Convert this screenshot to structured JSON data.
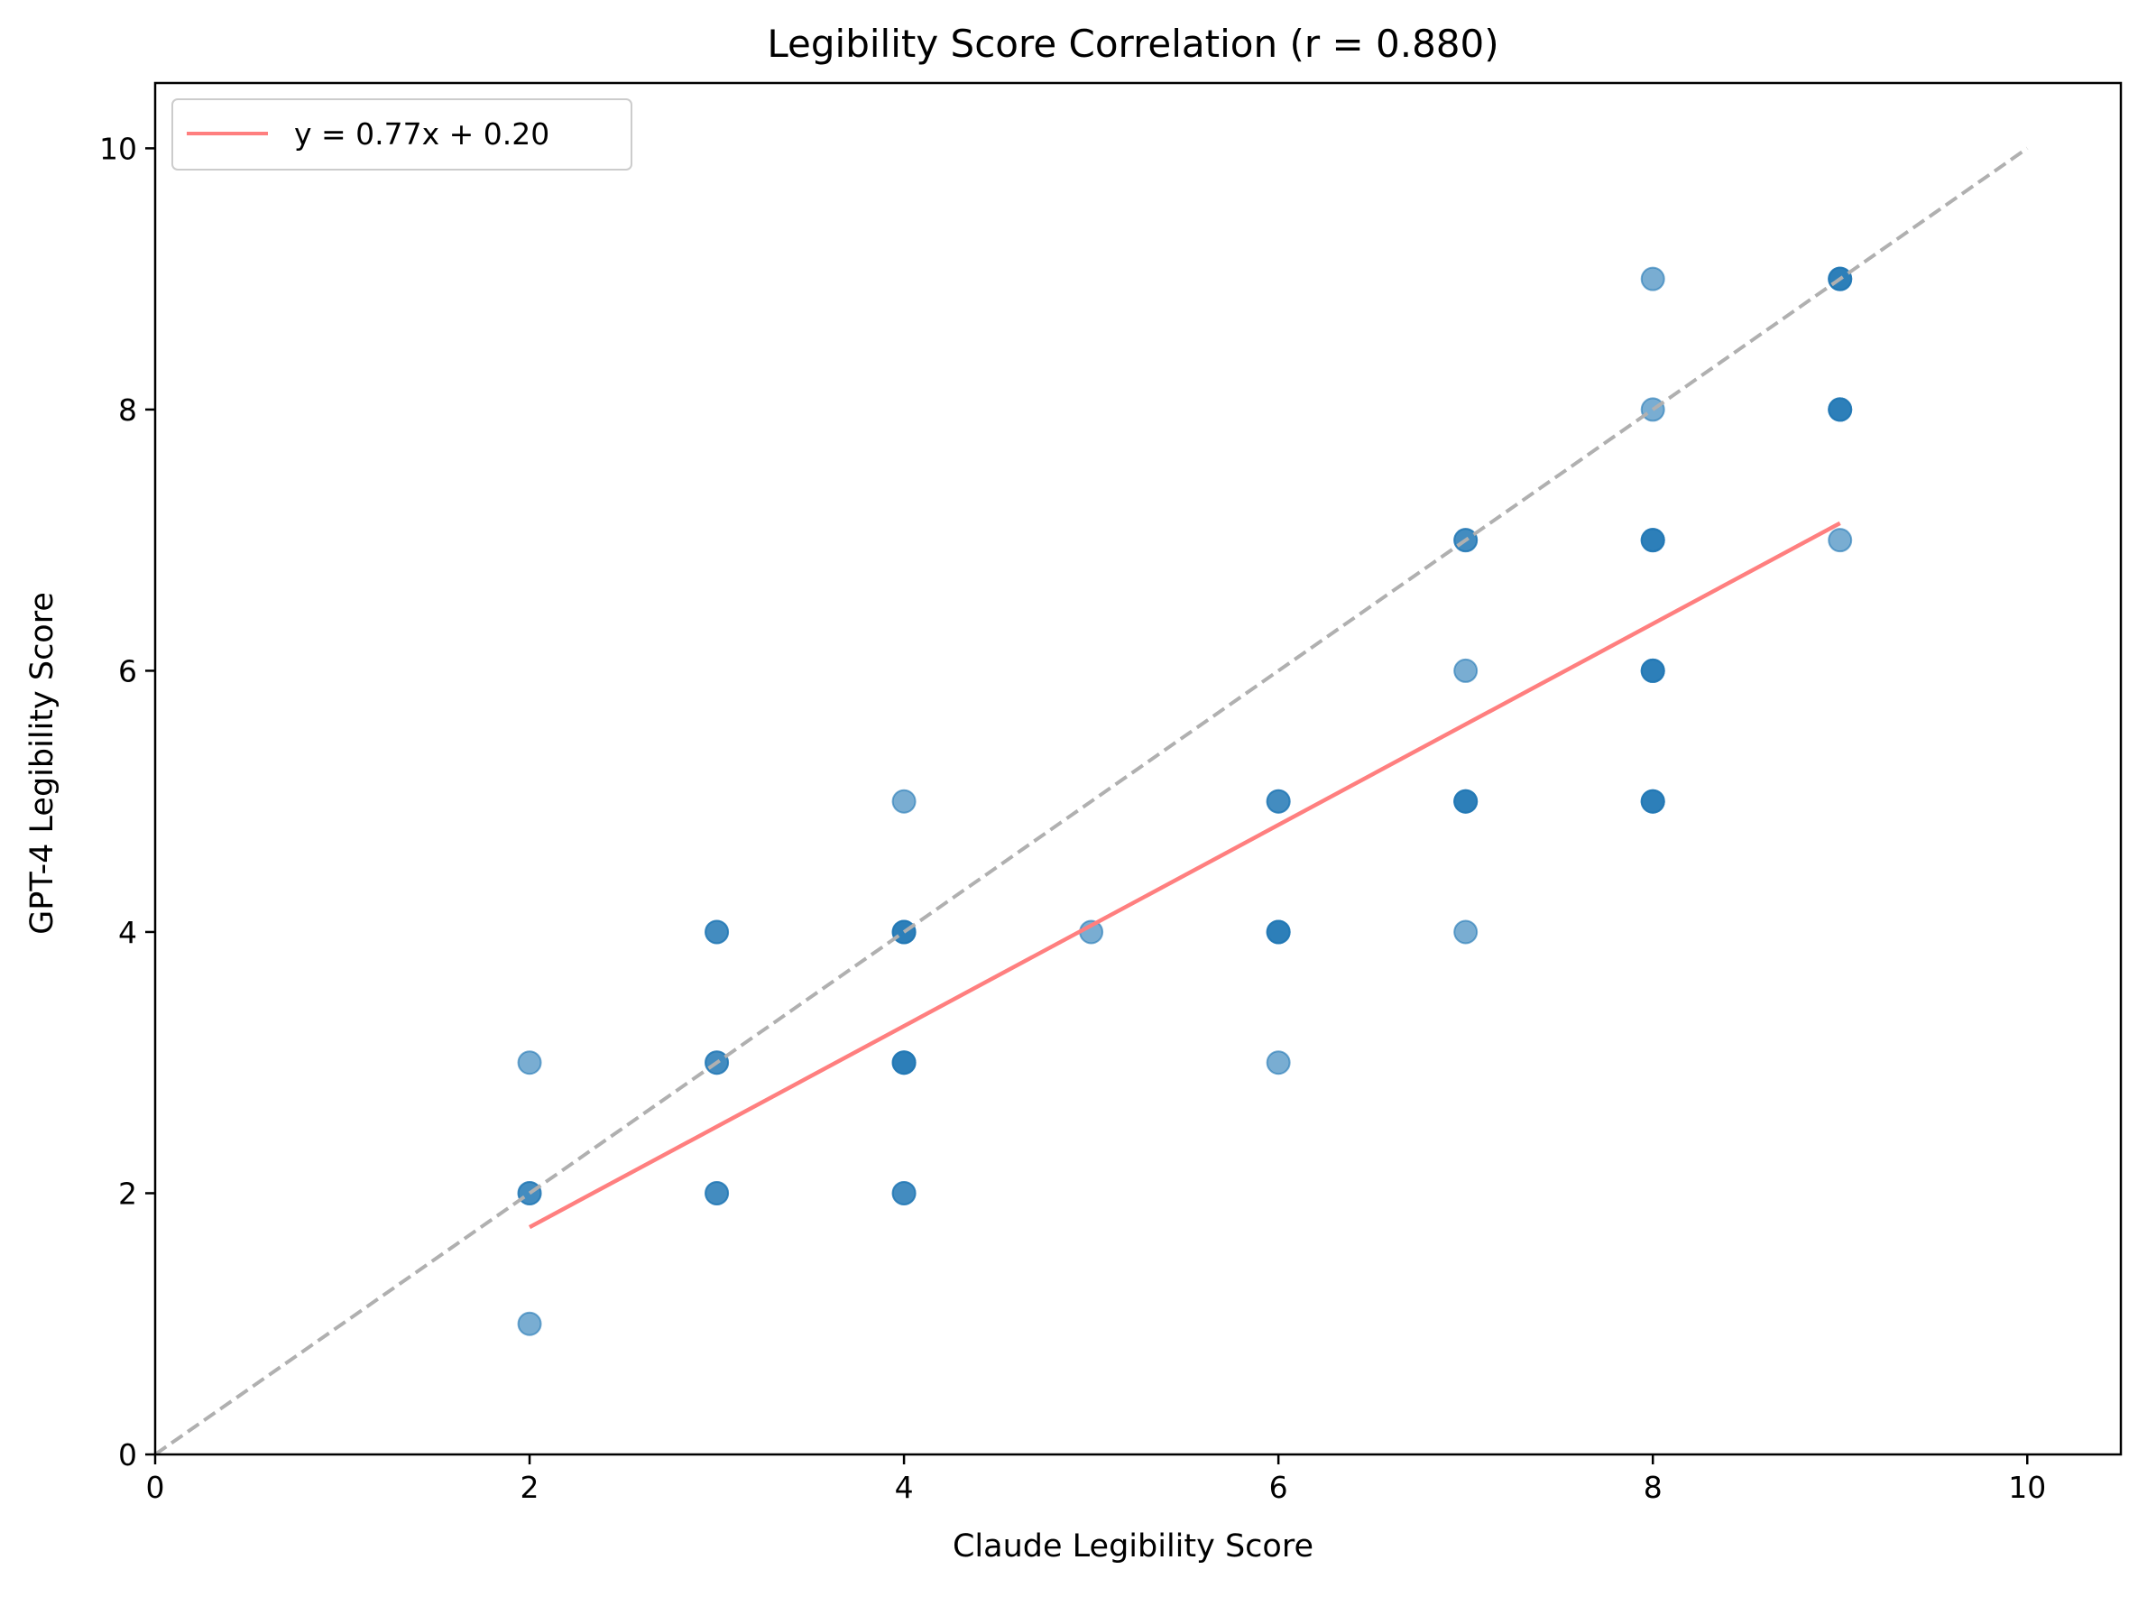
{
  "chart_data": {
    "type": "scatter",
    "title": "Legibility Score Correlation (r = 0.880)",
    "xlabel": "Claude Legibility Score",
    "ylabel": "GPT-4 Legibility Score",
    "xlim": [
      0,
      10.5
    ],
    "ylim": [
      0,
      10.5
    ],
    "xticks": [
      0,
      2,
      4,
      6,
      8,
      10
    ],
    "yticks": [
      0,
      2,
      4,
      6,
      8,
      10
    ],
    "xtick_labels": [
      "0",
      "2",
      "4",
      "6",
      "8",
      "10"
    ],
    "ytick_labels": [
      "0",
      "2",
      "4",
      "6",
      "8",
      "10"
    ],
    "grid": false,
    "legend_position": "top-left",
    "series": [
      {
        "name": "",
        "kind": "points",
        "color": "#1f77b4",
        "points": [
          {
            "x": 2,
            "y": 1
          },
          {
            "x": 2,
            "y": 2
          },
          {
            "x": 2,
            "y": 2
          },
          {
            "x": 2,
            "y": 3
          },
          {
            "x": 3,
            "y": 2
          },
          {
            "x": 3,
            "y": 2
          },
          {
            "x": 3,
            "y": 3
          },
          {
            "x": 3,
            "y": 3
          },
          {
            "x": 3,
            "y": 4
          },
          {
            "x": 3,
            "y": 4
          },
          {
            "x": 4,
            "y": 2
          },
          {
            "x": 4,
            "y": 2
          },
          {
            "x": 4,
            "y": 3
          },
          {
            "x": 4,
            "y": 3
          },
          {
            "x": 4,
            "y": 3
          },
          {
            "x": 4,
            "y": 4
          },
          {
            "x": 4,
            "y": 4
          },
          {
            "x": 4,
            "y": 4
          },
          {
            "x": 4,
            "y": 5
          },
          {
            "x": 5,
            "y": 4
          },
          {
            "x": 6,
            "y": 3
          },
          {
            "x": 6,
            "y": 4
          },
          {
            "x": 6,
            "y": 4
          },
          {
            "x": 6,
            "y": 4
          },
          {
            "x": 6,
            "y": 5
          },
          {
            "x": 6,
            "y": 5
          },
          {
            "x": 7,
            "y": 4
          },
          {
            "x": 7,
            "y": 5
          },
          {
            "x": 7,
            "y": 5
          },
          {
            "x": 7,
            "y": 5
          },
          {
            "x": 7,
            "y": 6
          },
          {
            "x": 7,
            "y": 7
          },
          {
            "x": 7,
            "y": 7
          },
          {
            "x": 8,
            "y": 5
          },
          {
            "x": 8,
            "y": 5
          },
          {
            "x": 8,
            "y": 5
          },
          {
            "x": 8,
            "y": 6
          },
          {
            "x": 8,
            "y": 6
          },
          {
            "x": 8,
            "y": 6
          },
          {
            "x": 8,
            "y": 7
          },
          {
            "x": 8,
            "y": 7
          },
          {
            "x": 8,
            "y": 7
          },
          {
            "x": 8,
            "y": 8
          },
          {
            "x": 8,
            "y": 9
          },
          {
            "x": 9,
            "y": 7
          },
          {
            "x": 9,
            "y": 8
          },
          {
            "x": 9,
            "y": 8
          },
          {
            "x": 9,
            "y": 8
          },
          {
            "x": 9,
            "y": 9
          },
          {
            "x": 9,
            "y": 9
          },
          {
            "x": 9,
            "y": 9
          }
        ]
      },
      {
        "name": "y = 0.77x + 0.20",
        "kind": "fit-line",
        "color": "#ff7f7f",
        "x": [
          2,
          9
        ],
        "y": [
          1.74,
          7.13
        ]
      },
      {
        "name": "",
        "kind": "reference-line",
        "color": "#b0b0b0",
        "dashed": true,
        "x": [
          0,
          10
        ],
        "y": [
          0,
          10
        ]
      }
    ]
  }
}
